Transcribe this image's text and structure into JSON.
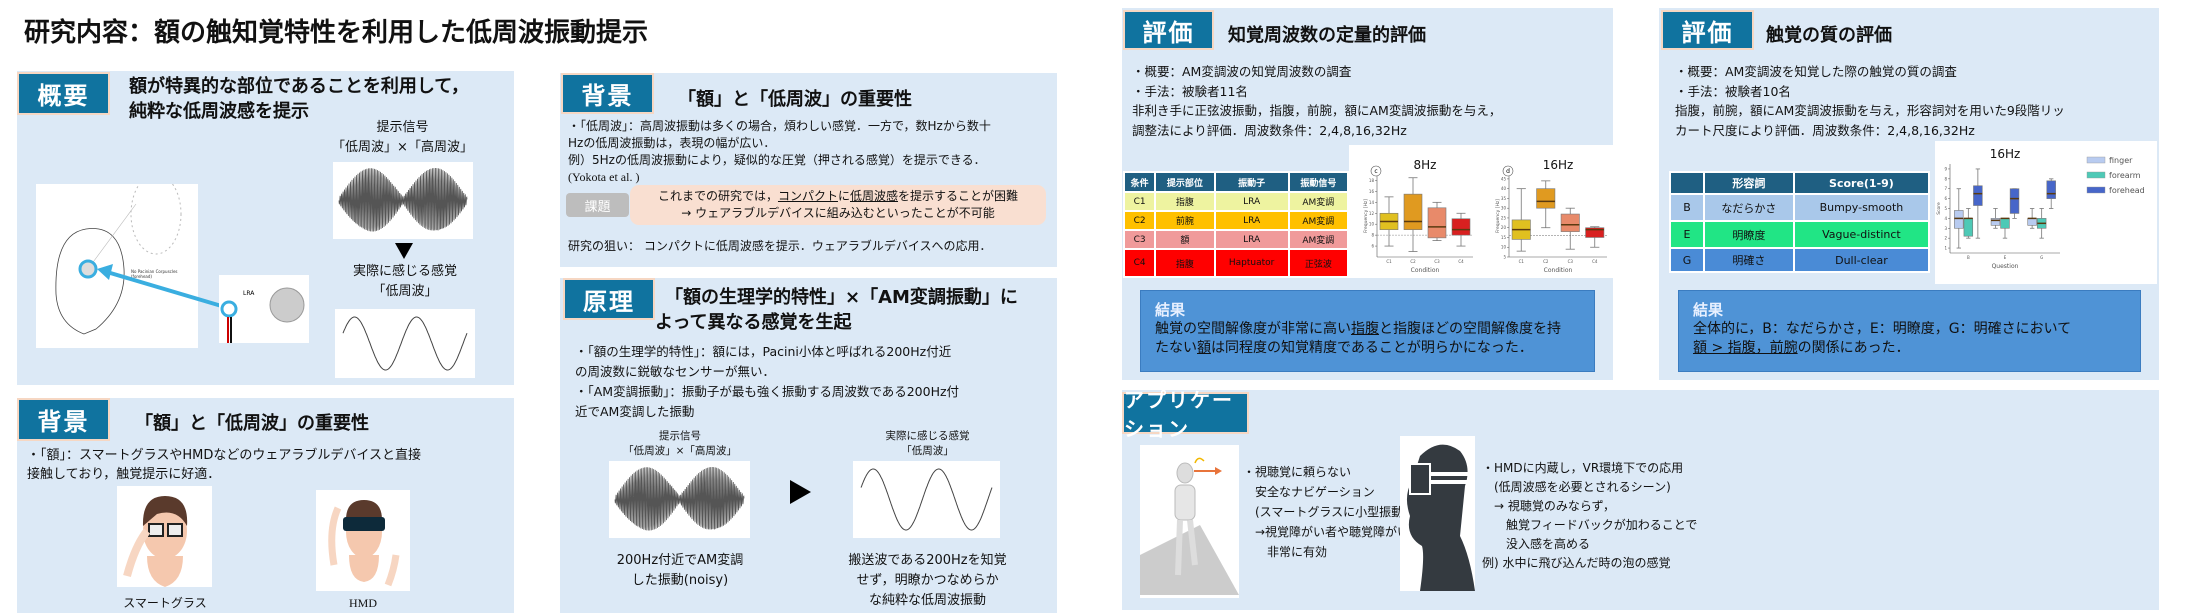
{
  "title": "研究内容：額の触知覚特性を利用した低周波振動提示",
  "overview": {
    "badge": "概要",
    "heading": [
      "額が特異的な部位であることを利用して，",
      "純粋な低周波感を提示"
    ],
    "signal_label": [
      "提示信号",
      "「低周波」×「高周波」"
    ],
    "perceived_label": [
      "実際に感じる感覚",
      "「低周波」"
    ],
    "figure_text": {
      "corpuscles": "No Pacinian Corpuscles",
      "forehead": "(forehead)",
      "lra": "LRA"
    }
  },
  "background_left": {
    "badge": "背景",
    "heading": "「額」と「低周波」の重要性",
    "lines": [
      "・「額」：スマートグラスやHMDなどのウェアラブルデバイスと直接",
      "接触しており，触覚提示に好適．"
    ],
    "captions": [
      "スマートグラス",
      "HMD"
    ]
  },
  "background_mid": {
    "badge": "背景",
    "heading": "「額」と「低周波」の重要性",
    "lines": [
      "・「低周波」：高周波振動は多くの場合，煩わしい感覚．一方で，数Hzから数十",
      "Hzの低周波振動は，表現の幅が広い．",
      "例）5Hzの低周波振動により，疑似的な圧覚（押される感覚）を提示できる．",
      "(Yokota et al. )"
    ],
    "issue_label": "課題",
    "issue": {
      "a": "これまでの研究では，",
      "b": "コンパクト",
      "c": "に",
      "d": "低周波感",
      "e": "を提示することが困難",
      "line2": "→ ウェアラブルデバイスに組み込むといったことが不可能"
    },
    "aim": "研究の狙い： コンパクトに低周波感を提示．ウェアラブルデバイスへの応用．"
  },
  "principle": {
    "badge": "原理",
    "heading": [
      "「額の生理学的特性」×「AM変調振動」に",
      "よって異なる感覚を生起"
    ],
    "lines": [
      "・「額の生理学的特性」：額には，Pacini小体と呼ばれる200Hz付近",
      "の周波数に鋭敏なセンサーが無い．",
      "・「AM変調振動」：振動子が最も強く振動する周波数である200Hz付",
      "近でAM変調した振動"
    ],
    "signal_label": [
      "提示信号",
      "「低周波」×「高周波」"
    ],
    "perceived_label": [
      "実際に感じる感覚",
      "「低周波」"
    ],
    "left_caption": [
      "200Hz付近でAM変調",
      "した振動(noisy)"
    ],
    "right_caption": [
      "搬送波である200Hzを知覚",
      "せず，明瞭かつなめらか",
      "な純粋な低周波振動"
    ]
  },
  "eval1": {
    "badge": "評価",
    "heading": "知覚周波数の定量的評価",
    "lines": [
      "・概要：AM変調波の知覚周波数の調査",
      "・手法：被験者11名",
      "非利き手に正弦波振動，指腹，前腕，額にAM変調波振動を与え，",
      "調整法により評価．周波数条件：2,4,8,16,32Hz"
    ],
    "table": {
      "headers": [
        "条件",
        "提示部位",
        "振動子",
        "振動信号"
      ],
      "rows": [
        [
          "C1",
          "指腹",
          "LRA",
          "AM変調"
        ],
        [
          "C2",
          "前腕",
          "LRA",
          "AM変調"
        ],
        [
          "C3",
          "額",
          "LRA",
          "AM変調"
        ],
        [
          "C4",
          "指腹",
          "Haptuator",
          "正弦波"
        ]
      ],
      "row_colors": [
        "#eef3a0",
        "#ffc000",
        "#f09a9a",
        "#ff0000"
      ]
    },
    "result": {
      "title": "結果",
      "a": "触覚の空間解像度が非常に高い",
      "b": "指腹",
      "c": "と指腹ほどの空間解像度を持",
      "d": "たない",
      "e": "額",
      "f": "は同程度の知覚精度であることが明らかになった．"
    }
  },
  "eval2": {
    "badge": "評価",
    "heading": "触覚の質の評価",
    "lines": [
      "・概要：AM変調波を知覚した際の触覚の質の調査",
      "・手法：被験者10名",
      "指腹，前腕，額にAM変調波振動を与え，形容詞対を用いた9段階リッ",
      "カート尺度により評価．周波数条件：2,4,8,16,32Hz"
    ],
    "table": {
      "headers": [
        "",
        "形容詞",
        "Score(1-9)"
      ],
      "rows": [
        [
          "B",
          "なだらかさ",
          "Bumpy-smooth"
        ],
        [
          "E",
          "明瞭度",
          "Vague-distinct"
        ],
        [
          "G",
          "明確さ",
          "Dull-clear"
        ]
      ],
      "row_colors": [
        "#a9c8ea",
        "#21e585",
        "#4a8bd6"
      ]
    },
    "result": {
      "title": "結果",
      "line1": "全体的に，B：なだらかさ，E：明瞭度，G：明確さにおいて",
      "u": "額 > 指腹，前腕",
      "rest": "の関係にあった．"
    }
  },
  "application": {
    "badge": "アプリケーション",
    "left": [
      "・視聴覚に頼らない",
      "　安全なナビゲーション",
      "　(スマートグラスに小型振動子を内蔵)",
      "　→視覚障がい者や聴覚障がい者に",
      "　　非常に有効"
    ],
    "right": [
      "・HMDに内蔵し，VR環境下での応用",
      "　(低周波感を必要とされるシーン)",
      "　→ 視聴覚のみならず，",
      "　　触覚フィードバックが加わることで",
      "　　没入感を高める",
      "例) 水中に飛び込んだ時の泡の感覚"
    ]
  },
  "figures": [
    {
      "id": "c",
      "title": "8Hz",
      "xlabel": "Condition",
      "ylabel": "Frequency [Hz]",
      "ylim": [
        4,
        19
      ],
      "yticks": [
        6,
        8,
        10,
        12,
        14,
        16,
        18
      ],
      "ref": 8,
      "categories": [
        "C1",
        "C2",
        "C3",
        "C4"
      ],
      "colors": [
        "#e0c020",
        "#e09a20",
        "#e88a6a",
        "#d82020"
      ],
      "boxes": [
        [
          6,
          9,
          10.5,
          12,
          15
        ],
        [
          5,
          9,
          10.5,
          15.5,
          18.5
        ],
        [
          7,
          7.5,
          9.5,
          13,
          14
        ],
        [
          6,
          8,
          9,
          11,
          12
        ]
      ]
    },
    {
      "id": "d",
      "title": "16Hz",
      "xlabel": "Condition",
      "ylabel": "Frequency [Hz]",
      "ylim": [
        5,
        47
      ],
      "yticks": [
        5,
        10,
        15,
        20,
        25,
        30,
        35,
        40,
        45
      ],
      "ref": 16,
      "categories": [
        "C1",
        "C2",
        "C3",
        "C4"
      ],
      "colors": [
        "#e0c020",
        "#e09a20",
        "#e88a6a",
        "#d82020"
      ],
      "boxes": [
        [
          8,
          14,
          19,
          24,
          40
        ],
        [
          20,
          30,
          33.5,
          40,
          44
        ],
        [
          9,
          18,
          21.5,
          27,
          30
        ],
        [
          10,
          15,
          19,
          20,
          20.5
        ]
      ],
      "sig": "*"
    },
    {
      "id": "q",
      "title": "16Hz",
      "xlabel": "Question",
      "ylabel": "Score",
      "ylim": [
        0.5,
        9.5
      ],
      "yticks": [
        1,
        2,
        3,
        4,
        5,
        6,
        7,
        8,
        9
      ],
      "categories": [
        "B",
        "E",
        "G"
      ],
      "legend": [
        "finger",
        "forearm",
        "forehead"
      ],
      "colors": [
        "#b8cbf0",
        "#4ec9b6",
        "#4766c9"
      ],
      "groups": [
        [
          [
            1,
            3,
            4,
            4.8,
            7
          ],
          [
            2,
            2.2,
            4,
            4,
            5
          ],
          [
            2,
            5.3,
            6.5,
            7.3,
            9
          ]
        ],
        [
          [
            3,
            3.3,
            3.8,
            4,
            5
          ],
          [
            2,
            3,
            4,
            4,
            4
          ],
          [
            4,
            4.5,
            6,
            7,
            7
          ]
        ],
        [
          [
            3,
            3.3,
            4,
            4,
            5
          ],
          [
            2,
            3,
            3.5,
            4,
            5
          ],
          [
            5,
            6,
            6.5,
            7.8,
            8
          ]
        ]
      ],
      "sig": "*"
    }
  ],
  "colors": {
    "badge": "#10739f",
    "panel": "#dce9f6",
    "result": "#4f93d6",
    "table_header": "#1f5f82"
  }
}
